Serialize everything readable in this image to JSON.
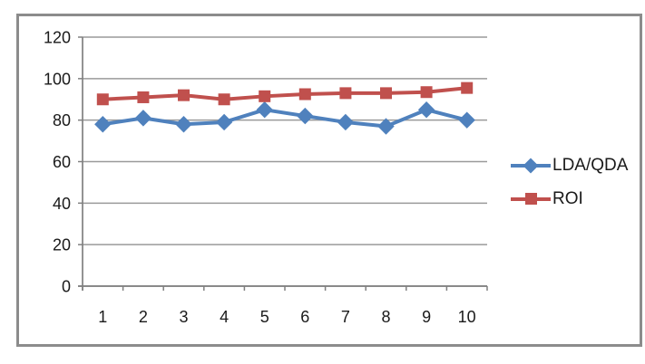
{
  "chart_data": {
    "type": "line",
    "title": "",
    "xlabel": "",
    "ylabel": "",
    "categories": [
      "1",
      "2",
      "3",
      "4",
      "5",
      "6",
      "7",
      "8",
      "9",
      "10"
    ],
    "series": [
      {
        "name": "LDA/QDA",
        "color": "#4F81BD",
        "marker": "diamond",
        "values": [
          78,
          81,
          78,
          79,
          85,
          82,
          79,
          77,
          85,
          80
        ]
      },
      {
        "name": "ROI",
        "color": "#C0504D",
        "marker": "square",
        "values": [
          90,
          91,
          92,
          90,
          91.5,
          92.5,
          93,
          93,
          93.5,
          95.5
        ]
      }
    ],
    "ylim": [
      0,
      120
    ],
    "ytick_step": 20,
    "yticks": [
      "0",
      "20",
      "40",
      "60",
      "80",
      "100",
      "120"
    ],
    "grid": true,
    "legend_position": "right",
    "colors": {
      "grid": "#9a9a9a",
      "axis": "#808080",
      "text": "#1a1a1a",
      "frame_border": "#8c8c8c",
      "background": "#ffffff"
    }
  }
}
